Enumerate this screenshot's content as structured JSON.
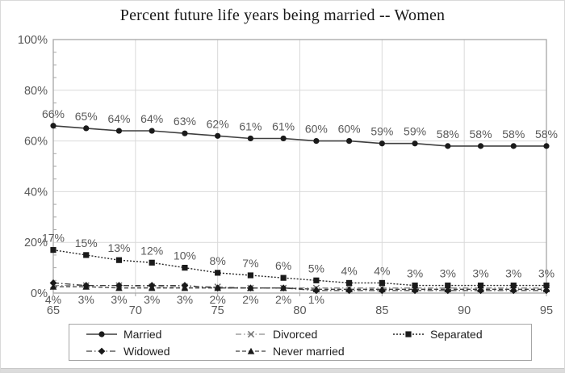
{
  "chart_data": {
    "type": "line",
    "title": "Percent future life years being married -- Women",
    "xlabel": "",
    "ylabel": "",
    "xlim": [
      65,
      95
    ],
    "ylim": [
      0,
      100
    ],
    "grid": true,
    "legend_position": "bottom",
    "x": [
      65,
      67,
      69,
      71,
      73,
      75,
      77,
      79,
      81,
      83,
      85,
      87,
      89,
      91,
      93,
      95
    ],
    "x_ticks": [
      "65",
      "70",
      "75",
      "80",
      "85",
      "90",
      "95"
    ],
    "x_tick_values": [
      65,
      70,
      75,
      80,
      85,
      90,
      95
    ],
    "x_gridlines": [
      70,
      75,
      80,
      85,
      90
    ],
    "y_ticks": [
      "0%",
      "20%",
      "40%",
      "60%",
      "80%",
      "100%"
    ],
    "y_tick_values": [
      0,
      20,
      40,
      60,
      80,
      100
    ],
    "y_gridlines": [
      20,
      40,
      60,
      80,
      100
    ],
    "colors": {
      "gridline": "#d9d9d9",
      "axis": "#a6a6a6",
      "tick_label": "#595959",
      "data_label": "#595959",
      "title": "#1a1a1a",
      "marker": "#1a1a1a"
    },
    "series": [
      {
        "name": "Married",
        "marker": "circle",
        "marker_color": "#1a1a1a",
        "line": "solid",
        "color": "#3f3f3f",
        "width": 1.6,
        "values": [
          66,
          65,
          64,
          64,
          63,
          62,
          61,
          61,
          60,
          60,
          59,
          59,
          58,
          58,
          58,
          58
        ],
        "labels": [
          "66%",
          "65%",
          "64%",
          "64%",
          "63%",
          "62%",
          "61%",
          "61%",
          "60%",
          "60%",
          "59%",
          "59%",
          "58%",
          "58%",
          "58%",
          "58%"
        ],
        "label_position": "above"
      },
      {
        "name": "Divorced",
        "marker": "x",
        "marker_color": "#737373",
        "line": "dash-dot",
        "color": "#8c8c8c",
        "width": 1.3,
        "values": [
          3,
          3,
          3,
          2.5,
          2.5,
          2.5,
          2,
          2,
          2,
          2,
          2,
          2,
          2,
          2,
          2,
          2
        ],
        "labels": [],
        "label_position": "none"
      },
      {
        "name": "Separated",
        "marker": "square",
        "marker_color": "#1a1a1a",
        "line": "dotted",
        "color": "#262626",
        "width": 1.4,
        "values": [
          17,
          15,
          13,
          12,
          10,
          8,
          7,
          6,
          5,
          4,
          4,
          3,
          3,
          3,
          3,
          3
        ],
        "labels": [
          "17%",
          "15%",
          "13%",
          "12%",
          "10%",
          "8%",
          "7%",
          "6%",
          "5%",
          "4%",
          "4%",
          "3%",
          "3%",
          "3%",
          "3%",
          "3%"
        ],
        "label_position": "above"
      },
      {
        "name": "Widowed",
        "marker": "diamond",
        "marker_color": "#1a1a1a",
        "line": "dash-dot",
        "color": "#404040",
        "width": 1.3,
        "values": [
          4,
          3,
          3,
          3,
          3,
          2,
          2,
          2,
          1,
          1,
          1,
          1,
          1,
          1,
          1,
          1
        ],
        "labels": [
          "4%",
          "3%",
          "3%",
          "3%",
          "3%",
          "2%",
          "2%",
          "2%",
          "1%",
          "",
          "",
          "",
          "",
          "",
          "",
          ""
        ],
        "label_position": "below-axis"
      },
      {
        "name": "Never married",
        "marker": "triangle",
        "marker_color": "#1a1a1a",
        "line": "dashed",
        "color": "#404040",
        "width": 1.3,
        "values": [
          2.5,
          2.5,
          2,
          2,
          2,
          2,
          2,
          2,
          1.5,
          1.5,
          1.5,
          1.5,
          1.5,
          1.5,
          1.5,
          1.5
        ],
        "labels": [],
        "label_position": "none"
      }
    ]
  }
}
